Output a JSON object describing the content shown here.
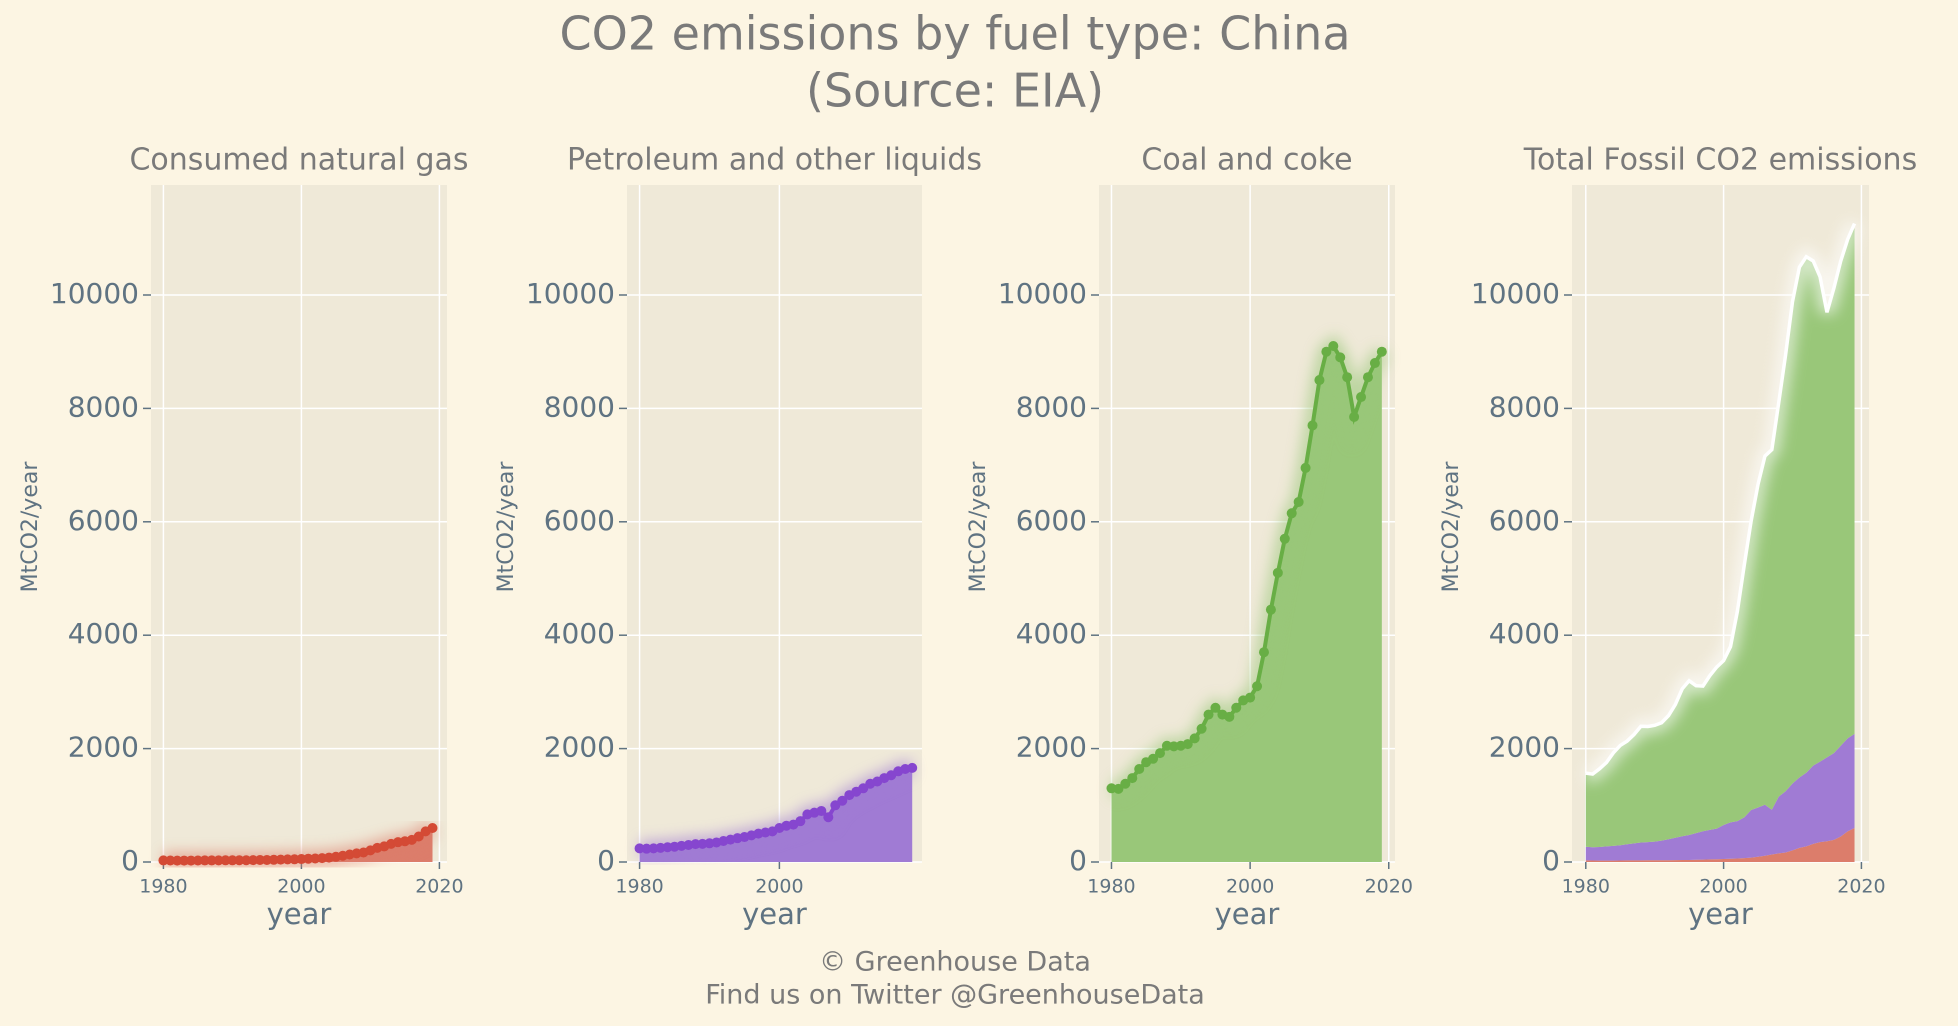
{
  "title": "CO2 emissions by fuel type: China",
  "subtitle": "(Source: EIA)",
  "credit": [
    "© Greenhouse Data",
    "Find us on Twitter @GreenhouseData"
  ],
  "chart_data": [
    {
      "type": "area_line",
      "title": "Consumed natural gas",
      "xlabel": "year",
      "ylabel": "MtCO2/year",
      "x": [
        1980,
        1981,
        1982,
        1983,
        1984,
        1985,
        1986,
        1987,
        1988,
        1989,
        1990,
        1991,
        1992,
        1993,
        1994,
        1995,
        1996,
        1997,
        1998,
        1999,
        2000,
        2001,
        2002,
        2003,
        2004,
        2005,
        2006,
        2007,
        2008,
        2009,
        2010,
        2011,
        2012,
        2013,
        2014,
        2015,
        2016,
        2017,
        2018,
        2019
      ],
      "values": [
        28,
        26,
        24,
        25,
        25,
        26,
        28,
        28,
        29,
        30,
        30,
        31,
        31,
        33,
        35,
        36,
        39,
        42,
        46,
        48,
        52,
        58,
        62,
        68,
        78,
        92,
        110,
        132,
        152,
        168,
        205,
        250,
        275,
        320,
        350,
        365,
        390,
        450,
        540,
        600
      ],
      "color": "#d44a35",
      "fill": "#dc7d6b",
      "xlim": [
        1978.2,
        2021.1
      ],
      "xticks": [
        1980,
        2000,
        2020
      ],
      "ylim": [
        0,
        11940
      ],
      "yticks": [
        0,
        2000,
        4000,
        6000,
        8000,
        10000
      ],
      "grid": true
    },
    {
      "type": "area_line",
      "title": "Petroleum and other liquids",
      "xlabel": "year",
      "ylabel": "MtCO2/year",
      "x": [
        1980,
        1981,
        1982,
        1983,
        1984,
        1985,
        1986,
        1987,
        1988,
        1989,
        1990,
        1991,
        1992,
        1993,
        1994,
        1995,
        1996,
        1997,
        1998,
        1999,
        2000,
        2001,
        2002,
        2003,
        2004,
        2005,
        2006,
        2007,
        2008,
        2009,
        2010,
        2011,
        2012,
        2013,
        2014,
        2015,
        2016,
        2017,
        2018,
        2019
      ],
      "values": [
        240,
        235,
        240,
        250,
        260,
        270,
        285,
        300,
        315,
        320,
        330,
        345,
        370,
        395,
        420,
        440,
        470,
        500,
        520,
        540,
        600,
        640,
        660,
        720,
        840,
        870,
        900,
        790,
        1000,
        1080,
        1180,
        1240,
        1300,
        1380,
        1420,
        1480,
        1530,
        1600,
        1640,
        1660
      ],
      "color": "#8646cf",
      "fill": "#a07bd4",
      "xlim": [
        1978.2,
        2020.4
      ],
      "xticks": [
        1980,
        2000
      ],
      "ylim": [
        0,
        11940
      ],
      "yticks": [
        0,
        2000,
        4000,
        6000,
        8000,
        10000
      ],
      "grid": true
    },
    {
      "type": "area_line",
      "title": "Coal and coke",
      "xlabel": "year",
      "ylabel": "MtCO2/year",
      "x": [
        1980,
        1981,
        1982,
        1983,
        1984,
        1985,
        1986,
        1987,
        1988,
        1989,
        1990,
        1991,
        1992,
        1993,
        1994,
        1995,
        1996,
        1997,
        1998,
        1999,
        2000,
        2001,
        2002,
        2003,
        2004,
        2005,
        2006,
        2007,
        2008,
        2009,
        2010,
        2011,
        2012,
        2013,
        2014,
        2015,
        2016,
        2017,
        2018,
        2019
      ],
      "values": [
        1300,
        1290,
        1380,
        1480,
        1640,
        1760,
        1820,
        1920,
        2050,
        2040,
        2050,
        2080,
        2180,
        2350,
        2600,
        2720,
        2600,
        2560,
        2720,
        2850,
        2900,
        3100,
        3700,
        4450,
        5100,
        5700,
        6150,
        6350,
        6950,
        7700,
        8500,
        9000,
        9100,
        8900,
        8550,
        7850,
        8200,
        8550,
        8800,
        9000
      ],
      "color": "#68ae45",
      "fill": "#99c779",
      "xlim": [
        1978.2,
        2020.9
      ],
      "xticks": [
        1980,
        2000,
        2020
      ],
      "ylim": [
        0,
        11940
      ],
      "yticks": [
        0,
        2000,
        4000,
        6000,
        8000,
        10000
      ],
      "grid": true
    },
    {
      "type": "stacked_area",
      "title": "Total Fossil CO2 emissions",
      "xlabel": "year",
      "ylabel": "MtCO2/year",
      "x": [
        1980,
        1981,
        1982,
        1983,
        1984,
        1985,
        1986,
        1987,
        1988,
        1989,
        1990,
        1991,
        1992,
        1993,
        1994,
        1995,
        1996,
        1997,
        1998,
        1999,
        2000,
        2001,
        2002,
        2003,
        2004,
        2005,
        2006,
        2007,
        2008,
        2009,
        2010,
        2011,
        2012,
        2013,
        2014,
        2015,
        2016,
        2017,
        2018,
        2019
      ],
      "series": [
        {
          "color": "#dc7d6b",
          "values": [
            28,
            26,
            24,
            25,
            25,
            26,
            28,
            28,
            29,
            30,
            30,
            31,
            31,
            33,
            35,
            36,
            39,
            42,
            46,
            48,
            52,
            58,
            62,
            68,
            78,
            92,
            110,
            132,
            152,
            168,
            205,
            250,
            275,
            320,
            350,
            365,
            390,
            450,
            540,
            600
          ]
        },
        {
          "color": "#a07bd4",
          "values": [
            240,
            235,
            240,
            250,
            260,
            270,
            285,
            300,
            315,
            320,
            330,
            345,
            370,
            395,
            420,
            440,
            470,
            500,
            520,
            540,
            600,
            640,
            660,
            720,
            840,
            870,
            900,
            790,
            1000,
            1080,
            1180,
            1240,
            1300,
            1380,
            1420,
            1480,
            1530,
            1600,
            1640,
            1660
          ]
        },
        {
          "color": "#99c779",
          "values": [
            1300,
            1290,
            1380,
            1480,
            1640,
            1760,
            1820,
            1920,
            2050,
            2040,
            2050,
            2080,
            2180,
            2350,
            2600,
            2720,
            2600,
            2560,
            2720,
            2850,
            2900,
            3100,
            3700,
            4450,
            5100,
            5700,
            6150,
            6350,
            6950,
            7700,
            8500,
            9000,
            9100,
            8900,
            8550,
            7850,
            8200,
            8550,
            8800,
            9000
          ]
        }
      ],
      "total_color": "#ffffff",
      "xlim": [
        1978,
        2021.1
      ],
      "xticks": [
        1980,
        2000,
        2020
      ],
      "ylim": [
        0,
        11940
      ],
      "yticks": [
        0,
        2000,
        4000,
        6000,
        8000,
        10000
      ],
      "grid": true
    }
  ]
}
